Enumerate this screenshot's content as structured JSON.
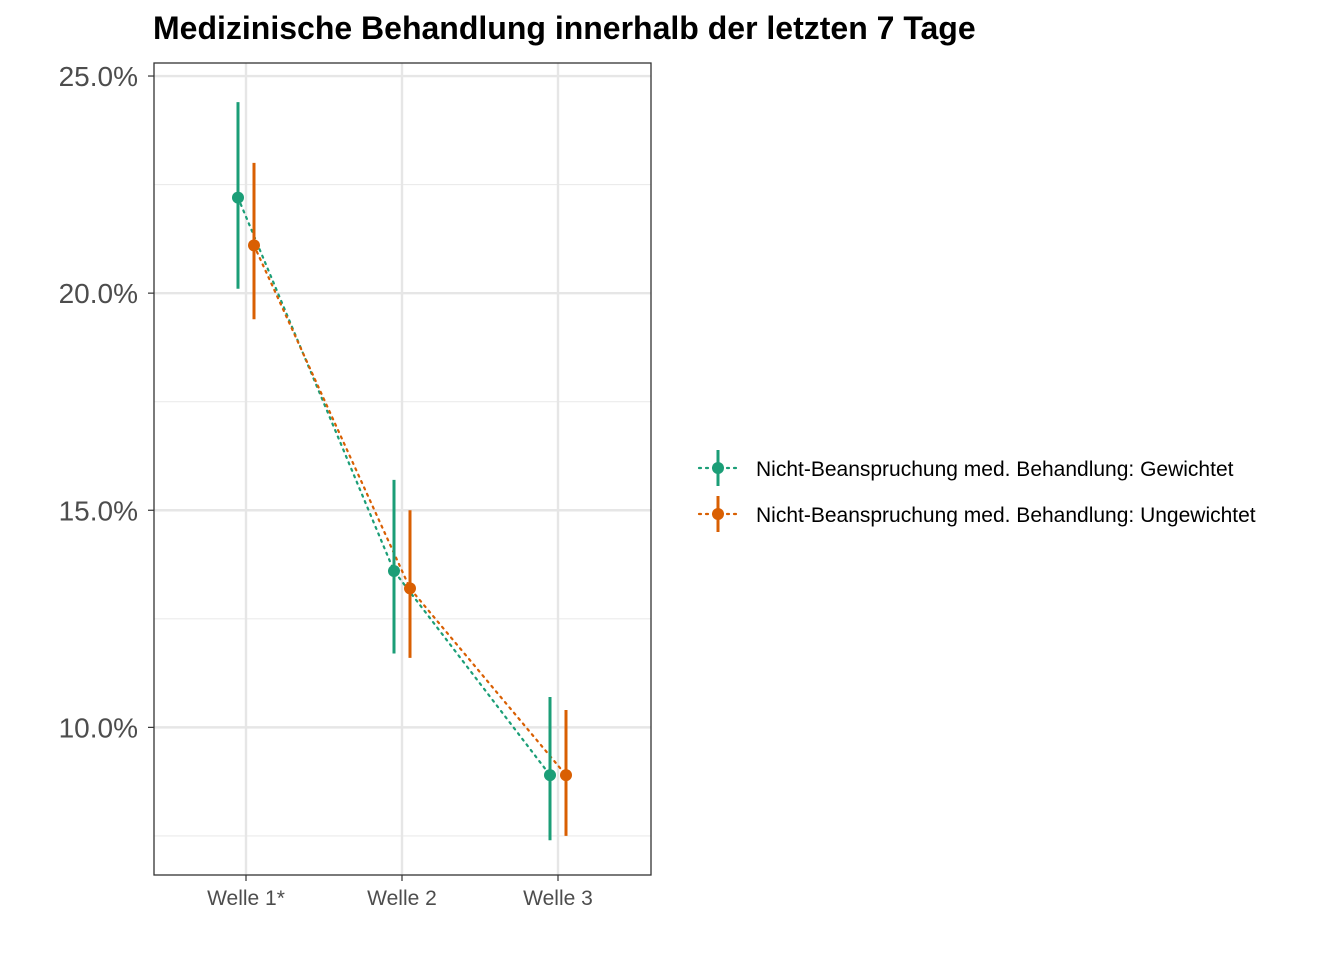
{
  "chart_data": {
    "type": "scatter",
    "title": "Medizinische Behandlung innerhalb der letzten 7 Tage",
    "xlabel": "",
    "ylabel": "",
    "categories": [
      "Welle 1*",
      "Welle 2",
      "Welle 3"
    ],
    "y_ticks": [
      10.0,
      15.0,
      20.0,
      25.0
    ],
    "y_tick_labels": [
      "10.0%",
      "15.0%",
      "20.0%",
      "25.0%"
    ],
    "ylim": [
      6.6,
      25.3
    ],
    "grid": true,
    "legend_position": "right",
    "series": [
      {
        "name": "Nicht-Beanspruchung med. Behandlung: Gewichtet",
        "color": "#1b9e77",
        "values": [
          22.2,
          13.6,
          8.9
        ],
        "lower": [
          20.1,
          11.7,
          7.4
        ],
        "upper": [
          24.4,
          15.7,
          10.7
        ]
      },
      {
        "name": "Nicht-Beanspruchung med. Behandlung: Ungewichtet",
        "color": "#d95f02",
        "values": [
          21.1,
          13.2,
          8.9
        ],
        "lower": [
          19.4,
          11.6,
          7.5
        ],
        "upper": [
          23.0,
          15.0,
          10.4
        ]
      }
    ]
  }
}
